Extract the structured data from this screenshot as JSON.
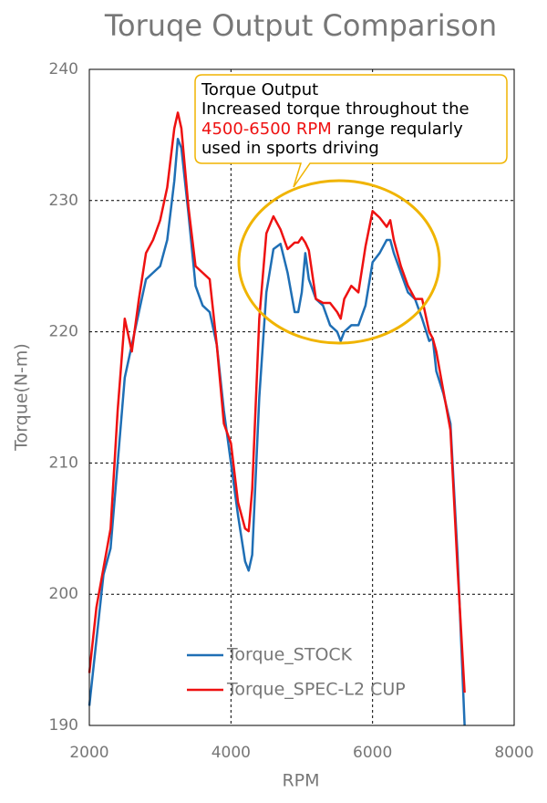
{
  "chart_data": {
    "type": "line",
    "title": "Toruqe Output Comparison",
    "x_label": "RPM",
    "y_label": "Torque(N-m)",
    "x": [
      2000,
      2100,
      2200,
      2300,
      2400,
      2500,
      2600,
      2700,
      2800,
      2900,
      3000,
      3100,
      3200,
      3250,
      3300,
      3400,
      3500,
      3600,
      3700,
      3800,
      3900,
      4000,
      4100,
      4200,
      4250,
      4300,
      4400,
      4500,
      4600,
      4700,
      4800,
      4900,
      4950,
      5000,
      5050,
      5100,
      5200,
      5300,
      5400,
      5500,
      5550,
      5600,
      5700,
      5800,
      5900,
      6000,
      6100,
      6200,
      6250,
      6300,
      6400,
      6500,
      6600,
      6700,
      6800,
      6850,
      6900,
      7000,
      7100,
      7200,
      7300
    ],
    "series": [
      {
        "name": "Torque_STOCK",
        "color": "#1f6fb5",
        "values": [
          191.5,
          196.5,
          201.5,
          203.5,
          210,
          216.5,
          219,
          221.5,
          224,
          224.5,
          225,
          227,
          231.5,
          234.7,
          234,
          229,
          223.5,
          222,
          221.5,
          219,
          214,
          210,
          206,
          202.5,
          201.8,
          203,
          215,
          223,
          226.3,
          226.7,
          224.5,
          221.5,
          221.5,
          223,
          226,
          224,
          222.5,
          222,
          220.5,
          220,
          219.3,
          220,
          220.5,
          220.5,
          222,
          225.3,
          226,
          227,
          227,
          226,
          224.5,
          223,
          222.5,
          221,
          219.3,
          219.5,
          217,
          215.3,
          213,
          203,
          190
        ]
      },
      {
        "name": "Torque_SPEC-L2 CUP",
        "color": "#ee1111",
        "values": [
          194,
          199,
          202,
          205,
          214,
          221,
          218.5,
          222.5,
          226,
          227,
          228.5,
          231,
          235.5,
          236.7,
          235.5,
          229.5,
          225,
          224.5,
          224,
          219,
          213,
          211.5,
          207,
          205,
          204.8,
          208,
          221,
          227.5,
          228.8,
          227.8,
          226.3,
          226.8,
          226.8,
          227.2,
          226.8,
          226.2,
          222.5,
          222.2,
          222.2,
          221.5,
          221,
          222.5,
          223.5,
          223,
          226.5,
          229.2,
          228.7,
          228,
          228.5,
          227,
          225,
          223.5,
          222.5,
          222.5,
          220,
          219.5,
          218.5,
          215.5,
          212.5,
          202,
          192.5
        ]
      }
    ],
    "xlim": [
      2000,
      8000
    ],
    "xticks": [
      2000,
      4000,
      6000,
      8000
    ],
    "ylim": [
      190,
      240
    ],
    "yticks": [
      190,
      200,
      210,
      220,
      230,
      240
    ],
    "grid": true,
    "legend": "lower-center",
    "annotation": {
      "title": "Torque Output",
      "line_1": "Increased torque throughout the",
      "highlight": "4500-6500 RPM",
      "line_2": "range reqularly",
      "line_3": "used in sports driving",
      "highlight_color": "#ee1111",
      "border_color": "#f0b400"
    }
  }
}
